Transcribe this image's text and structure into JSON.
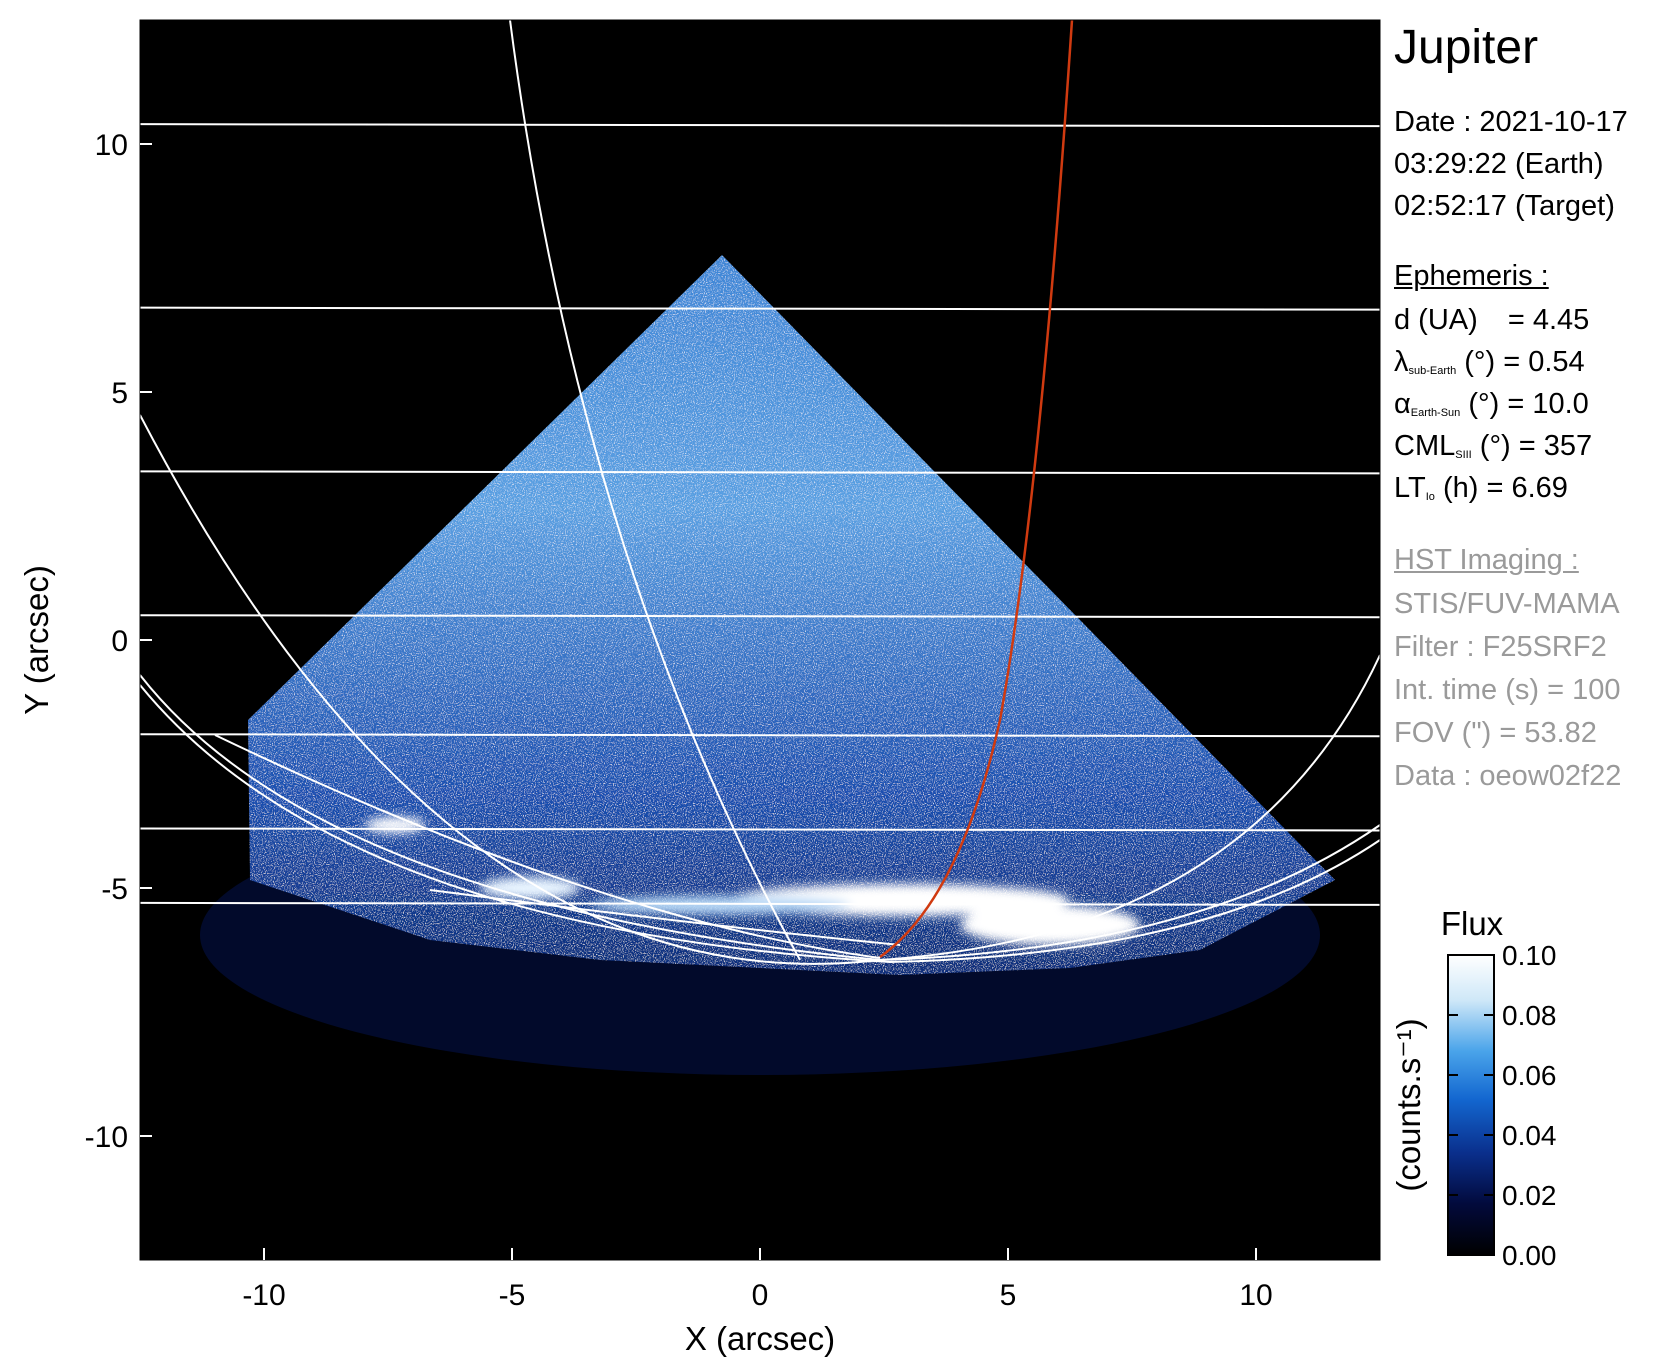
{
  "chart_data": {
    "type": "heatmap",
    "title": "Jupiter",
    "xlabel": "X (arcsec)",
    "ylabel": "Y (arcsec)",
    "xlim": [
      -12.5,
      12.5
    ],
    "ylim": [
      -12.5,
      12.5
    ],
    "xticks": [
      -10,
      -5,
      0,
      5,
      10
    ],
    "yticks": [
      -10,
      -5,
      0,
      5,
      10
    ],
    "grid_latitude_y": [
      10.4,
      6.7,
      3.4,
      0.5,
      -1.9,
      -3.8,
      -5.3
    ],
    "highlighted_meridian_color": "#d03a10",
    "colorbar": {
      "title": "Flux",
      "label": "(counts.s⁻¹)",
      "min": 0.0,
      "max": 0.1,
      "ticks": [
        "0.10",
        "0.08",
        "0.06",
        "0.04",
        "0.02",
        "0.00"
      ],
      "colors": [
        "#000000",
        "#020a3c",
        "#0a2f8c",
        "#1367d0",
        "#4aa4ea",
        "#cfe8f8",
        "#ffffff"
      ]
    }
  },
  "info": {
    "date": "Date : 2021-10-17",
    "time_earth": "03:29:22 (Earth)",
    "time_target": "02:52:17 (Target)",
    "ephemeris_heading": "Ephemeris :",
    "eph": [
      {
        "lhs": "d (UA)",
        "sub": "",
        "rhs": "= 4.45"
      },
      {
        "lhs": "λ",
        "sub": "sub-Earth",
        "rhs": "(°) = 0.54"
      },
      {
        "lhs": "α",
        "sub": "Earth-Sun",
        "rhs": "(°) = 10.0"
      },
      {
        "lhs": "CML",
        "sub": "SIII",
        "rhs": "(°) = 357"
      },
      {
        "lhs": "LT",
        "sub": "Io",
        "rhs": "(h) = 6.69"
      }
    ],
    "hst_heading": "HST Imaging :",
    "hst": [
      "STIS/FUV-MAMA",
      "Filter : F25SRF2",
      "Int. time (s) = 100",
      "FOV (\") = 53.82",
      "Data : oeow02f22"
    ]
  }
}
